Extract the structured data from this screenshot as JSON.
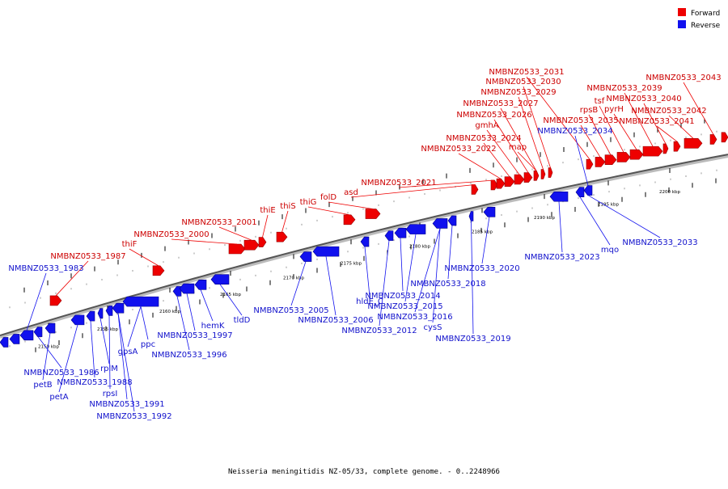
{
  "legend": {
    "forward_label": "Forward",
    "reverse_label": "Reverse",
    "forward_color": "#ee0000",
    "reverse_color": "#1111ee"
  },
  "caption": "Neisseria meningitidis NZ-05/33, complete genome. - 0..2248966",
  "axis": {
    "ticks": [
      "2150 kbp",
      "2155 kbp",
      "2160 kbp",
      "2165 kbp",
      "2170 kbp",
      "2175 kbp",
      "2180 kbp",
      "2185 kbp",
      "2190 kbp",
      "2195 kbp",
      "2200 kbp"
    ]
  },
  "forward_labels": [
    "thiF",
    "NMBNZ0533_1987",
    "NMBNZ0533_2000",
    "NMBNZ0533_2001",
    "thiE",
    "thiS",
    "thiG",
    "folD",
    "asd",
    "NMBNZ0533_2021",
    "NMBNZ0533_2022",
    "NMBNZ0533_2024",
    "map",
    "gmhA",
    "NMBNZ0533_2026",
    "NMBNZ0533_2027",
    "NMBNZ0533_2029",
    "NMBNZ0533_2030",
    "NMBNZ0533_2031",
    "NMBNZ0533_2035",
    "rpsB",
    "tsf",
    "pyrH",
    "NMBNZ0533_2039",
    "NMBNZ0533_2040",
    "NMBNZ0533_2041",
    "NMBNZ0533_2042",
    "NMBNZ0533_2043"
  ],
  "reverse_labels": [
    "NMBNZ0533_1983",
    "NMBNZ0533_1986",
    "petB",
    "petA",
    "NMBNZ0533_1988",
    "rplM",
    "rpsI",
    "NMBNZ0533_1991",
    "NMBNZ0533_1992",
    "gpsA",
    "ppc",
    "NMBNZ0533_1996",
    "NMBNZ0533_1997",
    "hemK",
    "tldD",
    "NMBNZ0533_2005",
    "NMBNZ0533_2006",
    "hldE_C",
    "NMBNZ0533_2012",
    "NMBNZ0533_2014",
    "NMBNZ0533_2015",
    "NMBNZ0533_2016",
    "cysS",
    "NMBNZ0533_2018",
    "NMBNZ0533_2019",
    "NMBNZ0533_2020",
    "NMBNZ0533_2023",
    "mqo",
    "NMBNZ0533_2033",
    "NMBNZ0533_2034"
  ]
}
